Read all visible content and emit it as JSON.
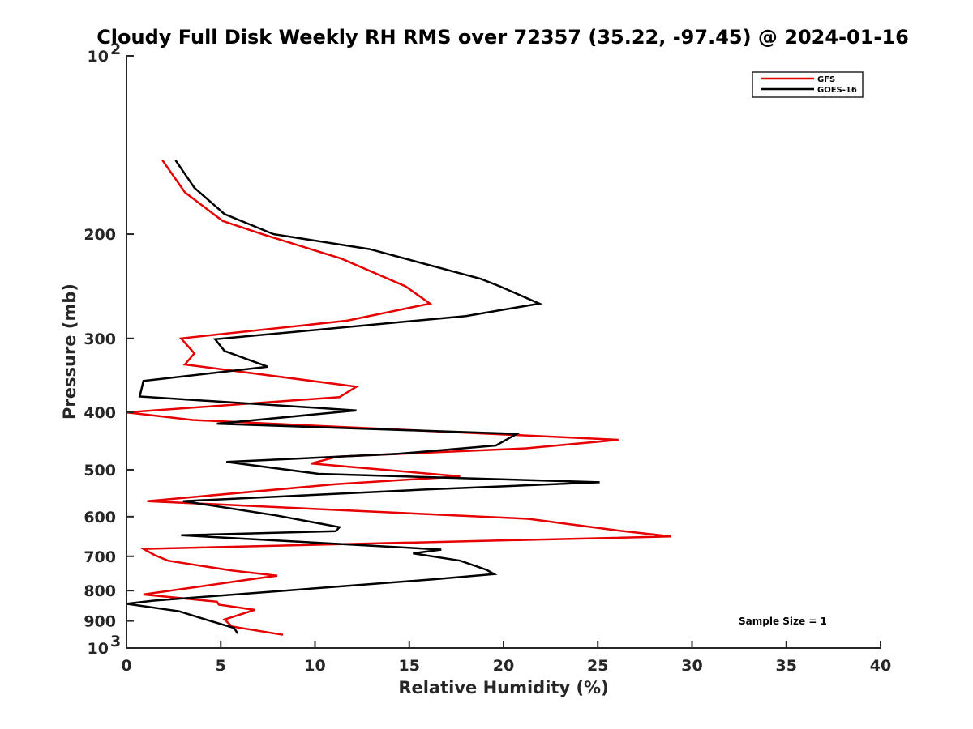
{
  "chart_data": {
    "type": "line",
    "title": "Cloudy Full Disk Weekly RH RMS over 72357 (35.22, -97.45) @ 2024-01-16",
    "xlabel": "Relative Humidity (%)",
    "ylabel": "Pressure (mb)",
    "xlim": [
      0,
      40
    ],
    "ylim": [
      100,
      1000
    ],
    "yscale": "log",
    "y_reversed": true,
    "xticks": [
      0,
      5,
      10,
      15,
      20,
      25,
      30,
      35,
      40
    ],
    "yticks": [
      {
        "value": 100,
        "base": "10",
        "exp": "2"
      },
      {
        "value": 200,
        "label": "200"
      },
      {
        "value": 300,
        "label": "300"
      },
      {
        "value": 400,
        "label": "400"
      },
      {
        "value": 500,
        "label": "500"
      },
      {
        "value": 600,
        "label": "600"
      },
      {
        "value": 700,
        "label": "700"
      },
      {
        "value": 800,
        "label": "800"
      },
      {
        "value": 900,
        "label": "900"
      },
      {
        "value": 1000,
        "base": "10",
        "exp": "3"
      }
    ],
    "grid": false,
    "legend_position": "top-right",
    "annotation": "Sample Size = 1",
    "series": [
      {
        "name": "GFS",
        "color": "#e60000",
        "points": [
          [
            1.9,
            150
          ],
          [
            3.1,
            170
          ],
          [
            5.1,
            190
          ],
          [
            7.2,
            200
          ],
          [
            11.4,
            220
          ],
          [
            14.8,
            245
          ],
          [
            16.1,
            262
          ],
          [
            11.7,
            280
          ],
          [
            2.9,
            300
          ],
          [
            3.6,
            318
          ],
          [
            3.1,
            332
          ],
          [
            12.2,
            362
          ],
          [
            11.3,
            377
          ],
          [
            0.0,
            400
          ],
          [
            3.5,
            412
          ],
          [
            26.1,
            445
          ],
          [
            21.2,
            460
          ],
          [
            11.2,
            475
          ],
          [
            9.8,
            488
          ],
          [
            17.7,
            513
          ],
          [
            11.1,
            529
          ],
          [
            1.1,
            565
          ],
          [
            21.3,
            605
          ],
          [
            26.0,
            633
          ],
          [
            28.9,
            648
          ],
          [
            0.9,
            680
          ],
          [
            1.5,
            697
          ],
          [
            2.2,
            712
          ],
          [
            5.6,
            740
          ],
          [
            8.0,
            755
          ],
          [
            6.4,
            767
          ],
          [
            0.9,
            812
          ],
          [
            4.8,
            835
          ],
          [
            4.9,
            845
          ],
          [
            6.8,
            862
          ],
          [
            5.2,
            895
          ],
          [
            5.6,
            920
          ],
          [
            8.3,
            950
          ]
        ]
      },
      {
        "name": "GOES-16",
        "color": "#000000",
        "points": [
          [
            2.6,
            150
          ],
          [
            3.6,
            167
          ],
          [
            5.2,
            185
          ],
          [
            7.8,
            200
          ],
          [
            12.9,
            212
          ],
          [
            18.8,
            238
          ],
          [
            19.8,
            245
          ],
          [
            21.9,
            262
          ],
          [
            18.0,
            275
          ],
          [
            4.7,
            301
          ],
          [
            5.2,
            315
          ],
          [
            7.5,
            335
          ],
          [
            0.9,
            354
          ],
          [
            0.7,
            376
          ],
          [
            12.2,
            397
          ],
          [
            4.8,
            418
          ],
          [
            20.7,
            435
          ],
          [
            19.6,
            455
          ],
          [
            14.4,
            470
          ],
          [
            5.3,
            485
          ],
          [
            10.2,
            508
          ],
          [
            25.1,
            525
          ],
          [
            15.8,
            540
          ],
          [
            3.0,
            565
          ],
          [
            7.9,
            597
          ],
          [
            11.3,
            625
          ],
          [
            11.1,
            635
          ],
          [
            2.9,
            645
          ],
          [
            16.7,
            682
          ],
          [
            15.2,
            692
          ],
          [
            17.7,
            712
          ],
          [
            19.1,
            738
          ],
          [
            19.5,
            750
          ],
          [
            16.4,
            765
          ],
          [
            1.4,
            832
          ],
          [
            0.0,
            842
          ],
          [
            2.8,
            867
          ],
          [
            4.2,
            895
          ],
          [
            5.7,
            925
          ],
          [
            5.9,
            945
          ]
        ]
      }
    ]
  }
}
